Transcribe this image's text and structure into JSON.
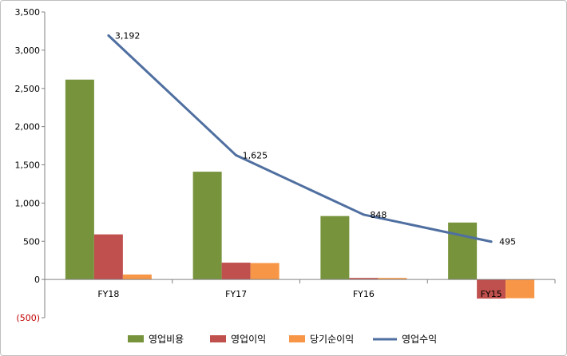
{
  "chart_data": {
    "type": "bar",
    "categories": [
      "FY18",
      "FY17",
      "FY16",
      "FY15"
    ],
    "ylim": [
      -500,
      3500
    ],
    "yticks": [
      3500,
      3000,
      2500,
      2000,
      1500,
      1000,
      500,
      0,
      -500
    ],
    "ytick_labels": [
      "3,500",
      "3,000",
      "2,500",
      "2,000",
      "1,500",
      "1,000",
      "500",
      "0",
      "(500)"
    ],
    "grid": false,
    "legend_position": "bottom",
    "series": [
      {
        "name": "영업비용",
        "type": "bar",
        "color": "#77933c",
        "values": [
          2615,
          1410,
          830,
          745
        ]
      },
      {
        "name": "영업이익",
        "type": "bar",
        "color": "#c0504d",
        "values": [
          590,
          220,
          20,
          -250
        ]
      },
      {
        "name": "당기순이익",
        "type": "bar",
        "color": "#f79646",
        "values": [
          65,
          215,
          20,
          -245
        ]
      },
      {
        "name": "영업수익",
        "type": "line",
        "color": "#4f6fa0",
        "values": [
          3192,
          1625,
          848,
          495
        ],
        "labels": [
          "3,192",
          "1,625",
          "848",
          "495"
        ]
      }
    ]
  }
}
